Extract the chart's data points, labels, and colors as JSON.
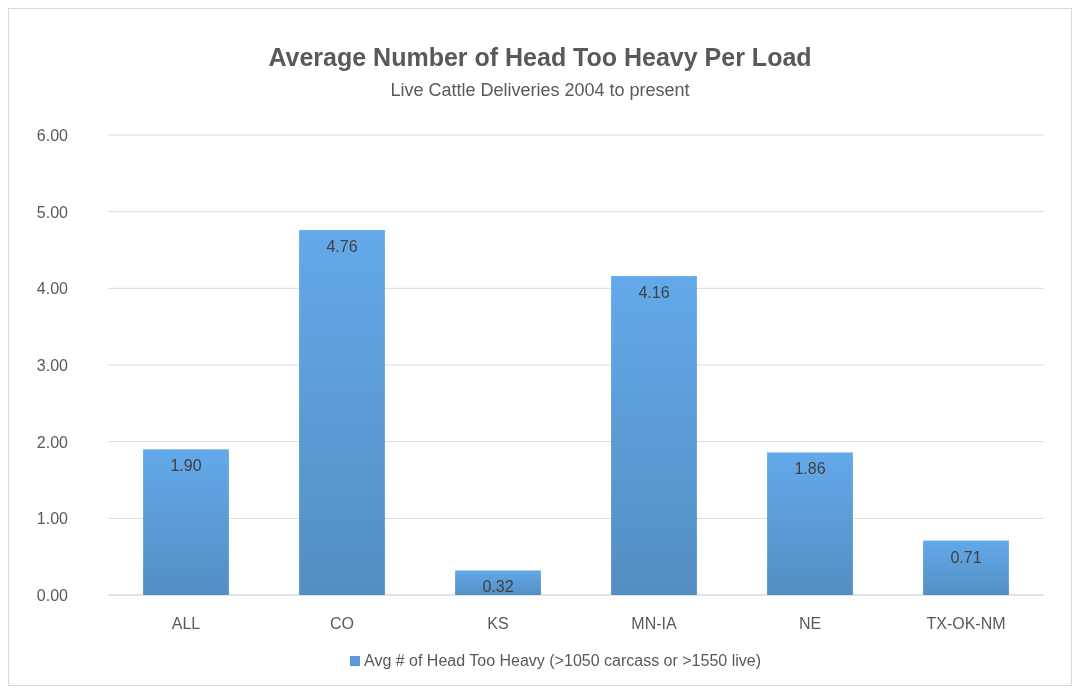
{
  "chart_data": {
    "type": "bar",
    "title": "Average Number of Head Too Heavy Per Load",
    "subtitle": "Live Cattle Deliveries 2004 to present",
    "categories": [
      "ALL",
      "CO",
      "KS",
      "MN-IA",
      "NE",
      "TX-OK-NM"
    ],
    "series": [
      {
        "name": "Avg # of Head Too Heavy (>1050 carcass or >1550 live)",
        "color": "#5b9bd5",
        "values": [
          1.9,
          4.76,
          0.32,
          4.16,
          1.86,
          0.71
        ],
        "value_labels": [
          "1.90",
          "4.76",
          "0.32",
          "4.16",
          "1.86",
          "0.71"
        ]
      }
    ],
    "ylim": [
      0,
      6
    ],
    "yticks": [
      {
        "value": 0,
        "label": "0.00"
      },
      {
        "value": 1,
        "label": "1.00"
      },
      {
        "value": 2,
        "label": "2.00"
      },
      {
        "value": 3,
        "label": "3.00"
      },
      {
        "value": 4,
        "label": "4.00"
      },
      {
        "value": 5,
        "label": "5.00"
      },
      {
        "value": 6,
        "label": "6.00"
      }
    ],
    "grid": "y",
    "legend": "bottom"
  }
}
